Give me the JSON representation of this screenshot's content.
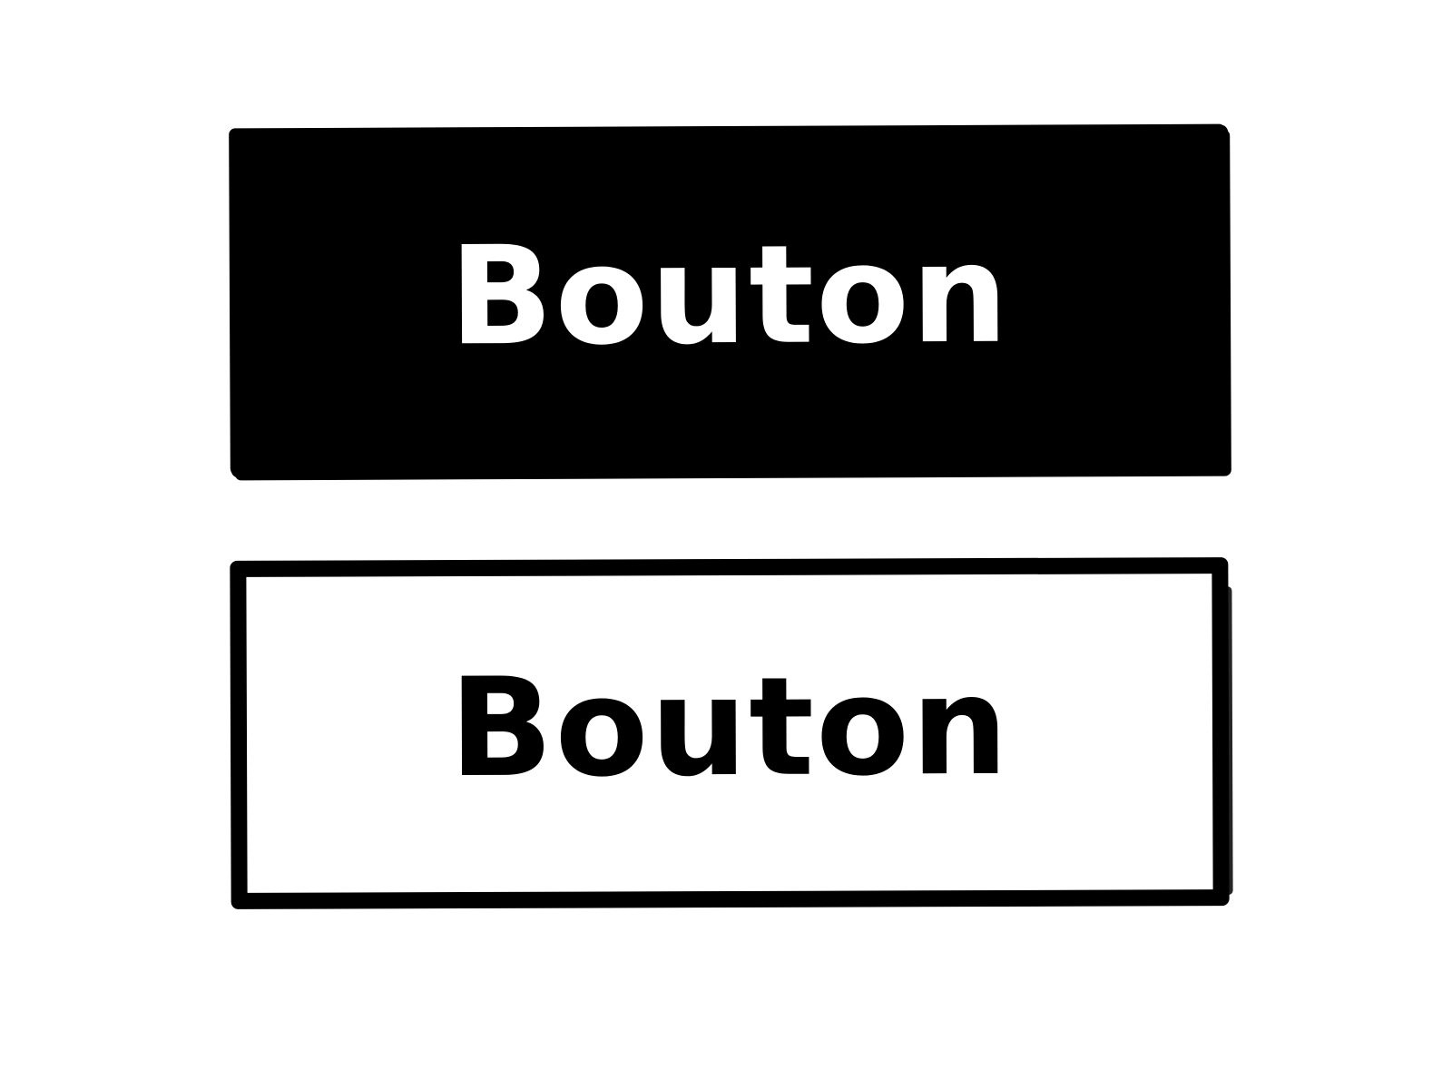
{
  "colors": {
    "background": "#ffffff",
    "ink": "#000000"
  },
  "buttons": [
    {
      "style": "filled",
      "label": "Bouton",
      "fill": "#000000",
      "text_color": "#ffffff"
    },
    {
      "style": "outline",
      "label": "Bouton",
      "fill": "#ffffff",
      "text_color": "#000000"
    }
  ]
}
